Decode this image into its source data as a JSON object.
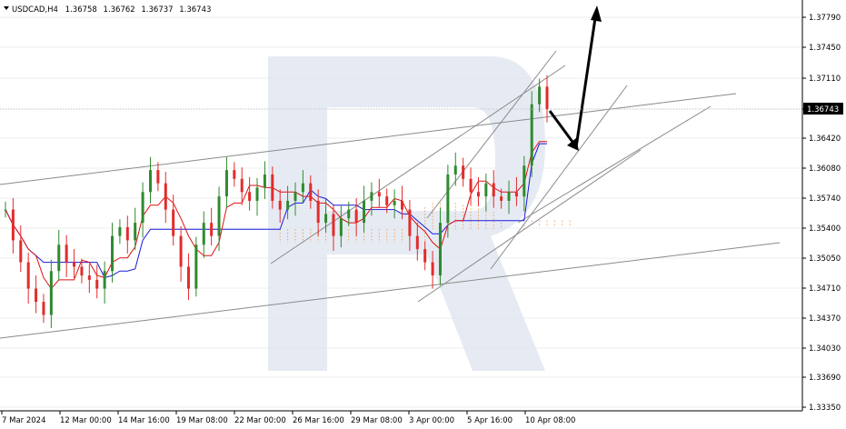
{
  "header": {
    "symbol": "USDCAD,H4",
    "open": "1.36758",
    "high": "1.36762",
    "low": "1.36737",
    "close": "1.36743"
  },
  "price_axis": {
    "ticks": [
      "1.37790",
      "1.37450",
      "1.37110",
      "1.36743",
      "1.36420",
      "1.36080",
      "1.35740",
      "1.35400",
      "1.35050",
      "1.34710",
      "1.34370",
      "1.34030",
      "1.33690",
      "1.33350"
    ],
    "current_label": "1.36743"
  },
  "time_axis": {
    "ticks": [
      "7 Mar 2024",
      "12 Mar 00:00",
      "14 Mar 16:00",
      "19 Mar 08:00",
      "22 Mar 00:00",
      "26 Mar 16:00",
      "29 Mar 08:00",
      "3 Apr 00:00",
      "5 Apr 16:00",
      "10 Apr 08:00"
    ]
  },
  "chart_data": {
    "type": "candlestick",
    "symbol": "USDCAD",
    "timeframe": "H4",
    "ylim": [
      1.3335,
      1.38
    ],
    "x": [
      "7 Mar 2024",
      "12 Mar 00:00",
      "14 Mar 16:00",
      "19 Mar 08:00",
      "22 Mar 00:00",
      "26 Mar 16:00",
      "29 Mar 08:00",
      "3 Apr 00:00",
      "5 Apr 16:00",
      "10 Apr 08:00"
    ],
    "candles_close": [
      1.356,
      1.3525,
      1.35,
      1.347,
      1.3455,
      1.344,
      1.349,
      1.352,
      1.35,
      1.3495,
      1.3485,
      1.348,
      1.347,
      1.349,
      1.353,
      1.354,
      1.3525,
      1.3545,
      1.358,
      1.3605,
      1.359,
      1.356,
      1.353,
      1.3495,
      1.347,
      1.352,
      1.3545,
      1.353,
      1.3575,
      1.3605,
      1.3595,
      1.358,
      1.357,
      1.3585,
      1.36,
      1.357,
      1.356,
      1.357,
      1.358,
      1.359,
      1.357,
      1.3545,
      1.3555,
      1.353,
      1.355,
      1.356,
      1.3545,
      1.357,
      1.358,
      1.3575,
      1.3565,
      1.357,
      1.356,
      1.353,
      1.3515,
      1.35,
      1.3485,
      1.3545,
      1.36,
      1.361,
      1.3595,
      1.358,
      1.3575,
      1.359,
      1.3575,
      1.357,
      1.358,
      1.3575,
      1.361,
      1.368,
      1.37,
      1.36743
    ],
    "annotation_arrows": [
      {
        "from": "1.36743",
        "to": "1.36200",
        "direction": "down"
      },
      {
        "from": "1.36200",
        "to": "1.37900",
        "direction": "up"
      }
    ]
  },
  "colors": {
    "bull": "#2f8a2f",
    "bear": "#e32b2b",
    "tenkan": "#e01010",
    "kijun": "#1a1adc",
    "cloud": "#f0a060",
    "channel": "#8a8a8a",
    "grid": "#e6e6e6",
    "watermark": "#d8e0ec",
    "current_price_bg": "#000000"
  }
}
